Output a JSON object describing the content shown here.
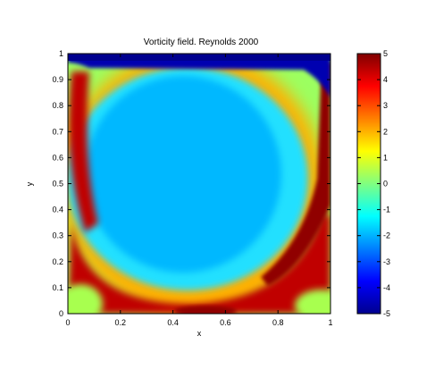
{
  "chart_data": {
    "type": "heatmap",
    "title": "Vorticity field. Reynolds 2000",
    "xlabel": "x",
    "ylabel": "y",
    "xlim": [
      0,
      1
    ],
    "ylim": [
      0,
      1
    ],
    "x_ticks": [
      0,
      0.2,
      0.4,
      0.6,
      0.8,
      1
    ],
    "x_tick_labels": [
      "0",
      "0.2",
      "0.4",
      "0.6",
      "0.8",
      "1"
    ],
    "y_ticks": [
      0,
      0.1,
      0.2,
      0.3,
      0.4,
      0.5,
      0.6,
      0.7,
      0.8,
      0.9,
      1
    ],
    "y_tick_labels": [
      "0",
      "0.1",
      "0.2",
      "0.3",
      "0.4",
      "0.5",
      "0.6",
      "0.7",
      "0.8",
      "0.9",
      "1"
    ],
    "colormap": "jet",
    "colorbar": {
      "range": [
        -5,
        5
      ],
      "ticks": [
        5,
        4,
        3,
        2,
        1,
        0,
        -1,
        -2,
        -3,
        -4,
        -5
      ],
      "tick_labels": [
        "5",
        "4",
        "3",
        "2",
        "1",
        "0",
        "-1",
        "-2",
        "-3",
        "-4",
        "-5"
      ]
    },
    "grid": false,
    "field_description_values": {
      "core_vortex": -1.3,
      "top_lid_layer": -5,
      "left_wall_band": 3.5,
      "right_wall_band": 5,
      "bottom_arc_band": 3.5,
      "corners": 0.5
    }
  }
}
